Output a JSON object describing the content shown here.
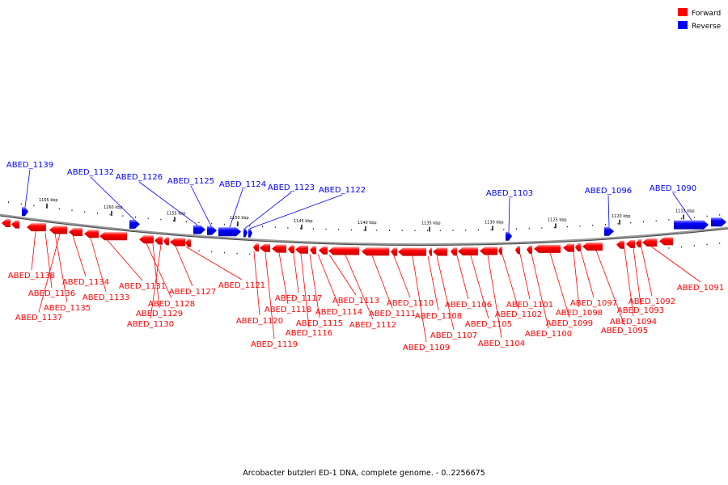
{
  "legend": [
    {
      "label": "Forward",
      "color": "#ff0000"
    },
    {
      "label": "Reverse",
      "color": "#0000ff"
    }
  ],
  "caption": "Arcobacter butzleri ED-1 DNA, complete genome. - 0..2256675",
  "ticks": [
    "1165 kbp",
    "1160 kbp",
    "1155 kbp",
    "1150 kbp",
    "1145 kbp",
    "1140 kbp",
    "1135 kbp",
    "1130 kbp",
    "1125 kbp",
    "1120 kbp",
    "1115 kbp"
  ],
  "reverse_genes": [
    "ABED_1139",
    "ABED_1132",
    "ABED_1126",
    "ABED_1125",
    "ABED_1124",
    "ABED_1123",
    "ABED_1122",
    "ABED_1103",
    "ABED_1096",
    "ABED_1090"
  ],
  "forward_genes": [
    "ABED_1138",
    "ABED_1136",
    "ABED_1135",
    "ABED_1137",
    "ABED_1134",
    "ABED_1133",
    "ABED_1131",
    "ABED_1128",
    "ABED_1129",
    "ABED_1130",
    "ABED_1127",
    "ABED_1121",
    "ABED_1120",
    "ABED_1119",
    "ABED_1118",
    "ABED_1117",
    "ABED_1116",
    "ABED_1115",
    "ABED_1114",
    "ABED_1113",
    "ABED_1112",
    "ABED_1111",
    "ABED_1110",
    "ABED_1109",
    "ABED_1108",
    "ABED_1107",
    "ABED_1106",
    "ABED_1105",
    "ABED_1104",
    "ABED_1102",
    "ABED_1101",
    "ABED_1100",
    "ABED_1099",
    "ABED_1098",
    "ABED_1097",
    "ABED_1095",
    "ABED_1094",
    "ABED_1093",
    "ABED_1092",
    "ABED_1091"
  ]
}
